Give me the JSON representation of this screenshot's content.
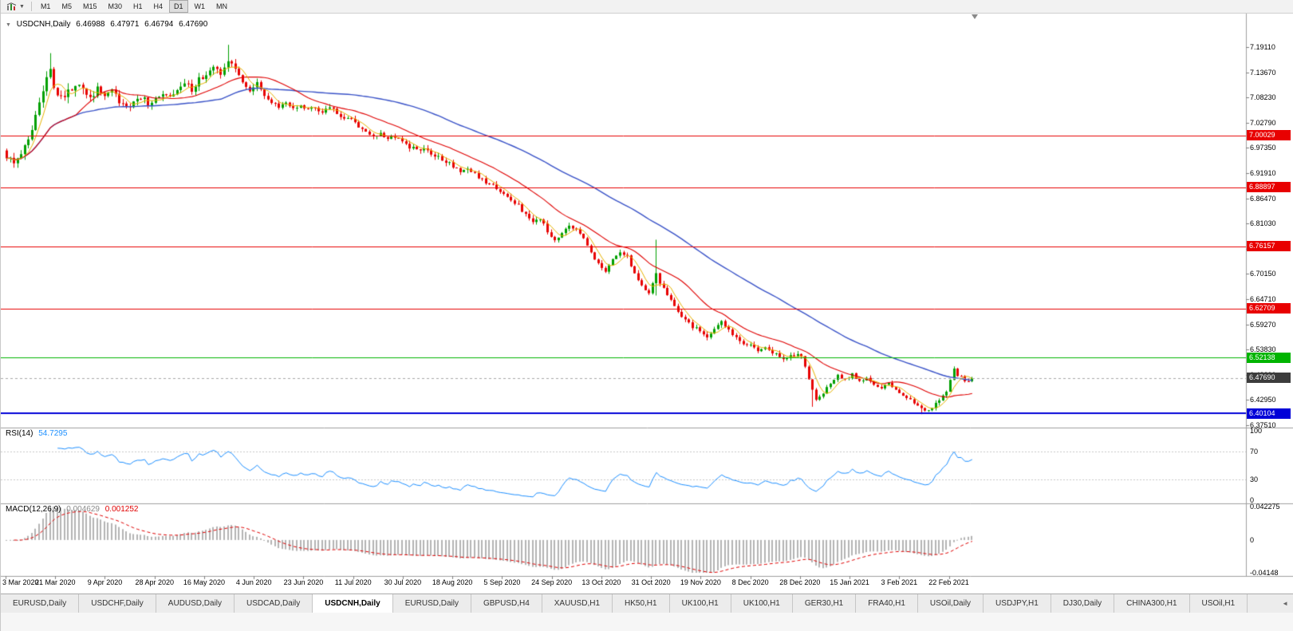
{
  "toolbar": {
    "timeframes": [
      "M1",
      "M5",
      "M15",
      "M30",
      "H1",
      "H4",
      "D1",
      "W1",
      "MN"
    ],
    "active_timeframe": "D1"
  },
  "chart": {
    "title": {
      "symbol_period": "USDCNH,Daily",
      "open": "6.46988",
      "high": "6.47971",
      "low": "6.46794",
      "close": "6.47690"
    },
    "y_axis_labels": [
      "7.19110",
      "7.13670",
      "7.08230",
      "7.02790",
      "6.97350",
      "6.91910",
      "6.86470",
      "6.81030",
      "6.75590",
      "6.70150",
      "6.64710",
      "6.59270",
      "6.53830",
      "6.48390",
      "6.42950",
      "6.37510"
    ],
    "x_axis_labels": [
      "3 Mar 2020",
      "21 Mar 2020",
      "9 Apr 2020",
      "28 Apr 2020",
      "16 May 2020",
      "4 Jun 2020",
      "23 Jun 2020",
      "11 Jul 2020",
      "30 Jul 2020",
      "18 Aug 2020",
      "5 Sep 2020",
      "24 Sep 2020",
      "13 Oct 2020",
      "31 Oct 2020",
      "19 Nov 2020",
      "8 Dec 2020",
      "28 Dec 2020",
      "15 Jan 2021",
      "3 Feb 2021",
      "22 Feb 2021"
    ],
    "levels": [
      {
        "label": "7.00029",
        "price": 7.00029,
        "color": "#e80000",
        "width": 1
      },
      {
        "label": "6.88897",
        "price": 6.88897,
        "color": "#e80000",
        "width": 1
      },
      {
        "label": "6.76157",
        "price": 6.76157,
        "color": "#e80000",
        "width": 1
      },
      {
        "label": "6.62709",
        "price": 6.62709,
        "color": "#e80000",
        "width": 1
      },
      {
        "label": "6.52138",
        "price": 6.52138,
        "color": "#00b400",
        "width": 1
      },
      {
        "label": "6.40104",
        "price": 6.40104,
        "color": "#0000d8",
        "width": 2
      }
    ],
    "current_price": {
      "label": "6.47690",
      "price": 6.4769,
      "badge_color": "#3c3c3c",
      "line_color": "#a8a8a8"
    }
  },
  "indicators": {
    "rsi": {
      "name": "RSI(14)",
      "value": "54.7295",
      "period": 14,
      "levels": [
        70,
        30
      ],
      "axis_labels": [
        "100",
        "70",
        "30",
        "0"
      ],
      "axis_values": [
        100,
        70,
        30,
        0
      ],
      "color": "#1e90ff"
    },
    "macd": {
      "name": "MACD(12,26,9)",
      "main_value": "0.004629",
      "signal_value": "0.001252",
      "axis_labels": [
        "0.042275",
        "0",
        "-0.04148"
      ],
      "axis_values": [
        0.042275,
        0,
        -0.04148
      ],
      "hist_color": "#b4b4b4",
      "signal_color": "#e00000"
    }
  },
  "chart_data": {
    "type": "candlestick",
    "symbol": "USDCNH",
    "period": "Daily",
    "candle_count": 267,
    "y_range_displayed": [
      6.345,
      7.225
    ],
    "last_candle": {
      "open": 6.46988,
      "high": 6.47971,
      "low": 6.46794,
      "close": 6.4769
    },
    "trend_points": [
      [
        0,
        6.955
      ],
      [
        2,
        6.935
      ],
      [
        4,
        6.96
      ],
      [
        6,
        6.995
      ],
      [
        8,
        7.04
      ],
      [
        10,
        7.09
      ],
      [
        12,
        7.15
      ],
      [
        13,
        7.105
      ],
      [
        15,
        7.08
      ],
      [
        17,
        7.095
      ],
      [
        19,
        7.11
      ],
      [
        21,
        7.095
      ],
      [
        23,
        7.08
      ],
      [
        25,
        7.1
      ],
      [
        27,
        7.085
      ],
      [
        29,
        7.095
      ],
      [
        31,
        7.075
      ],
      [
        33,
        7.06
      ],
      [
        35,
        7.072
      ],
      [
        37,
        7.085
      ],
      [
        39,
        7.07
      ],
      [
        41,
        7.082
      ],
      [
        43,
        7.095
      ],
      [
        45,
        7.085
      ],
      [
        47,
        7.1
      ],
      [
        49,
        7.112
      ],
      [
        51,
        7.1
      ],
      [
        53,
        7.12
      ],
      [
        55,
        7.135
      ],
      [
        57,
        7.148
      ],
      [
        59,
        7.13
      ],
      [
        61,
        7.165
      ],
      [
        63,
        7.14
      ],
      [
        65,
        7.12
      ],
      [
        67,
        7.098
      ],
      [
        69,
        7.11
      ],
      [
        71,
        7.085
      ],
      [
        73,
        7.072
      ],
      [
        75,
        7.062
      ],
      [
        77,
        7.07
      ],
      [
        79,
        7.058
      ],
      [
        81,
        7.065
      ],
      [
        83,
        7.055
      ],
      [
        85,
        7.062
      ],
      [
        87,
        7.052
      ],
      [
        89,
        7.06
      ],
      [
        91,
        7.048
      ],
      [
        93,
        7.04
      ],
      [
        95,
        7.032
      ],
      [
        97,
        7.02
      ],
      [
        99,
        7.008
      ],
      [
        101,
        6.998
      ],
      [
        103,
        7.005
      ],
      [
        105,
        6.992
      ],
      [
        107,
        6.998
      ],
      [
        109,
        6.988
      ],
      [
        111,
        6.975
      ],
      [
        113,
        6.968
      ],
      [
        115,
        6.972
      ],
      [
        117,
        6.96
      ],
      [
        119,
        6.952
      ],
      [
        121,
        6.945
      ],
      [
        123,
        6.932
      ],
      [
        125,
        6.922
      ],
      [
        127,
        6.928
      ],
      [
        129,
        6.915
      ],
      [
        131,
        6.905
      ],
      [
        133,
        6.895
      ],
      [
        135,
        6.885
      ],
      [
        137,
        6.872
      ],
      [
        139,
        6.862
      ],
      [
        141,
        6.852
      ],
      [
        143,
        6.828
      ],
      [
        145,
        6.812
      ],
      [
        147,
        6.82
      ],
      [
        149,
        6.795
      ],
      [
        151,
        6.772
      ],
      [
        153,
        6.79
      ],
      [
        155,
        6.808
      ],
      [
        157,
        6.795
      ],
      [
        159,
        6.775
      ],
      [
        161,
        6.748
      ],
      [
        163,
        6.722
      ],
      [
        165,
        6.71
      ],
      [
        167,
        6.735
      ],
      [
        169,
        6.752
      ],
      [
        171,
        6.74
      ],
      [
        173,
        6.702
      ],
      [
        175,
        6.678
      ],
      [
        177,
        6.662
      ],
      [
        179,
        6.7
      ],
      [
        181,
        6.668
      ],
      [
        183,
        6.642
      ],
      [
        185,
        6.62
      ],
      [
        187,
        6.6
      ],
      [
        189,
        6.588
      ],
      [
        191,
        6.578
      ],
      [
        193,
        6.565
      ],
      [
        195,
        6.585
      ],
      [
        197,
        6.598
      ],
      [
        199,
        6.582
      ],
      [
        201,
        6.562
      ],
      [
        203,
        6.552
      ],
      [
        205,
        6.545
      ],
      [
        207,
        6.538
      ],
      [
        209,
        6.545
      ],
      [
        211,
        6.532
      ],
      [
        213,
        6.525
      ],
      [
        215,
        6.518
      ],
      [
        217,
        6.528
      ],
      [
        219,
        6.522
      ],
      [
        221,
        6.475
      ],
      [
        223,
        6.428
      ],
      [
        225,
        6.445
      ],
      [
        227,
        6.468
      ],
      [
        229,
        6.482
      ],
      [
        231,
        6.476
      ],
      [
        233,
        6.484
      ],
      [
        235,
        6.47
      ],
      [
        237,
        6.478
      ],
      [
        239,
        6.462
      ],
      [
        241,
        6.455
      ],
      [
        243,
        6.465
      ],
      [
        245,
        6.452
      ],
      [
        247,
        6.442
      ],
      [
        249,
        6.428
      ],
      [
        251,
        6.415
      ],
      [
        253,
        6.408
      ],
      [
        255,
        6.412
      ],
      [
        257,
        6.432
      ],
      [
        259,
        6.448
      ],
      [
        261,
        6.498
      ],
      [
        262,
        6.484
      ],
      [
        263,
        6.478
      ],
      [
        264,
        6.472
      ],
      [
        265,
        6.4699
      ],
      [
        266,
        6.4769
      ]
    ],
    "notable_extremes": {
      "12": {
        "high": 7.178
      },
      "61": {
        "high": 7.196
      },
      "179": {
        "high": 6.7755,
        "low": 6.655
      },
      "222": {
        "low": 6.415
      },
      "252": {
        "low": 6.399
      }
    },
    "moving_averages": [
      {
        "name": "fast",
        "period": 5,
        "color": "#e8b400"
      },
      {
        "name": "medium",
        "period": 20,
        "color": "#e00000"
      },
      {
        "name": "slow",
        "period": 60,
        "color": "#3a53c8"
      }
    ],
    "colors": {
      "up": "#00a000",
      "down": "#e80000",
      "background": "#ffffff",
      "separator": "#a0a0a0"
    }
  },
  "tabbar": {
    "tabs": [
      "EURUSD,Daily",
      "USDCHF,Daily",
      "AUDUSD,Daily",
      "USDCAD,Daily",
      "USDCNH,Daily",
      "EURUSD,Daily",
      "GBPUSD,H4",
      "XAUUSD,H1",
      "HK50,H1",
      "UK100,H1",
      "UK100,H1",
      "GER30,H1",
      "FRA40,H1",
      "USOil,Daily",
      "USDJPY,H1",
      "DJ30,Daily",
      "CHINA300,H1",
      "USOil,H1"
    ],
    "active_index": 4,
    "scroll_icon": "◄"
  }
}
